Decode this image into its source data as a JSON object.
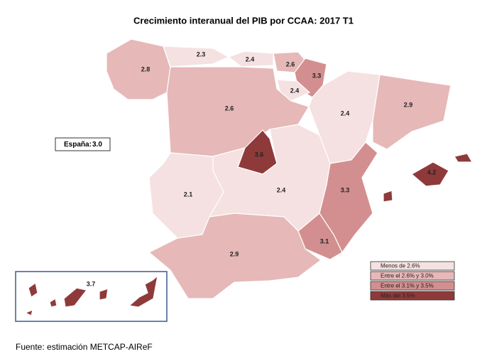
{
  "title": "Crecimiento interanual del PIB por CCAA: 2017 T1",
  "spain": {
    "label": "España:",
    "value": 3,
    "value_label": "3.0"
  },
  "regions": [
    {
      "value": 2.8,
      "color": "#e6b8b8"
    },
    {
      "value": 2.3,
      "color": "#f5e1e1"
    },
    {
      "value": 2.4,
      "color": "#f5e1e1"
    },
    {
      "value": 2.6,
      "color": "#e6b8b8"
    },
    {
      "value": 3.3,
      "color": "#d38f8f"
    },
    {
      "value": 2.4,
      "color": "#f5e1e1"
    },
    {
      "value": 2.6,
      "color": "#e6b8b8"
    },
    {
      "value": 2.4,
      "color": "#f5e1e1"
    },
    {
      "value": 2.9,
      "color": "#e6b8b8"
    },
    {
      "value": 3.6,
      "color": "#8f3a3a"
    },
    {
      "value": 2.4,
      "color": "#f5e1e1"
    },
    {
      "value": 2.1,
      "color": "#f5e1e1"
    },
    {
      "value": 3.3,
      "color": "#d38f8f"
    },
    {
      "value": 4.2,
      "color": "#8f3a3a"
    },
    {
      "value": 3.1,
      "color": "#d38f8f"
    },
    {
      "value": 2.9,
      "color": "#e6b8b8"
    },
    {
      "value": 3.7,
      "color": "#8f3a3a"
    }
  ],
  "legend": [
    {
      "label": "Menos de 2.6%",
      "color": "#f5e1e1"
    },
    {
      "label": "Entre el 2.6% y 3.0%",
      "color": "#e6b8b8"
    },
    {
      "label": "Entre el 3.1% y 3.5%",
      "color": "#d38f8f"
    },
    {
      "label": "Más del 3.5%",
      "color": "#8f3a3a"
    }
  ],
  "source": "Fuente: estimación METCAP-AIReF"
}
